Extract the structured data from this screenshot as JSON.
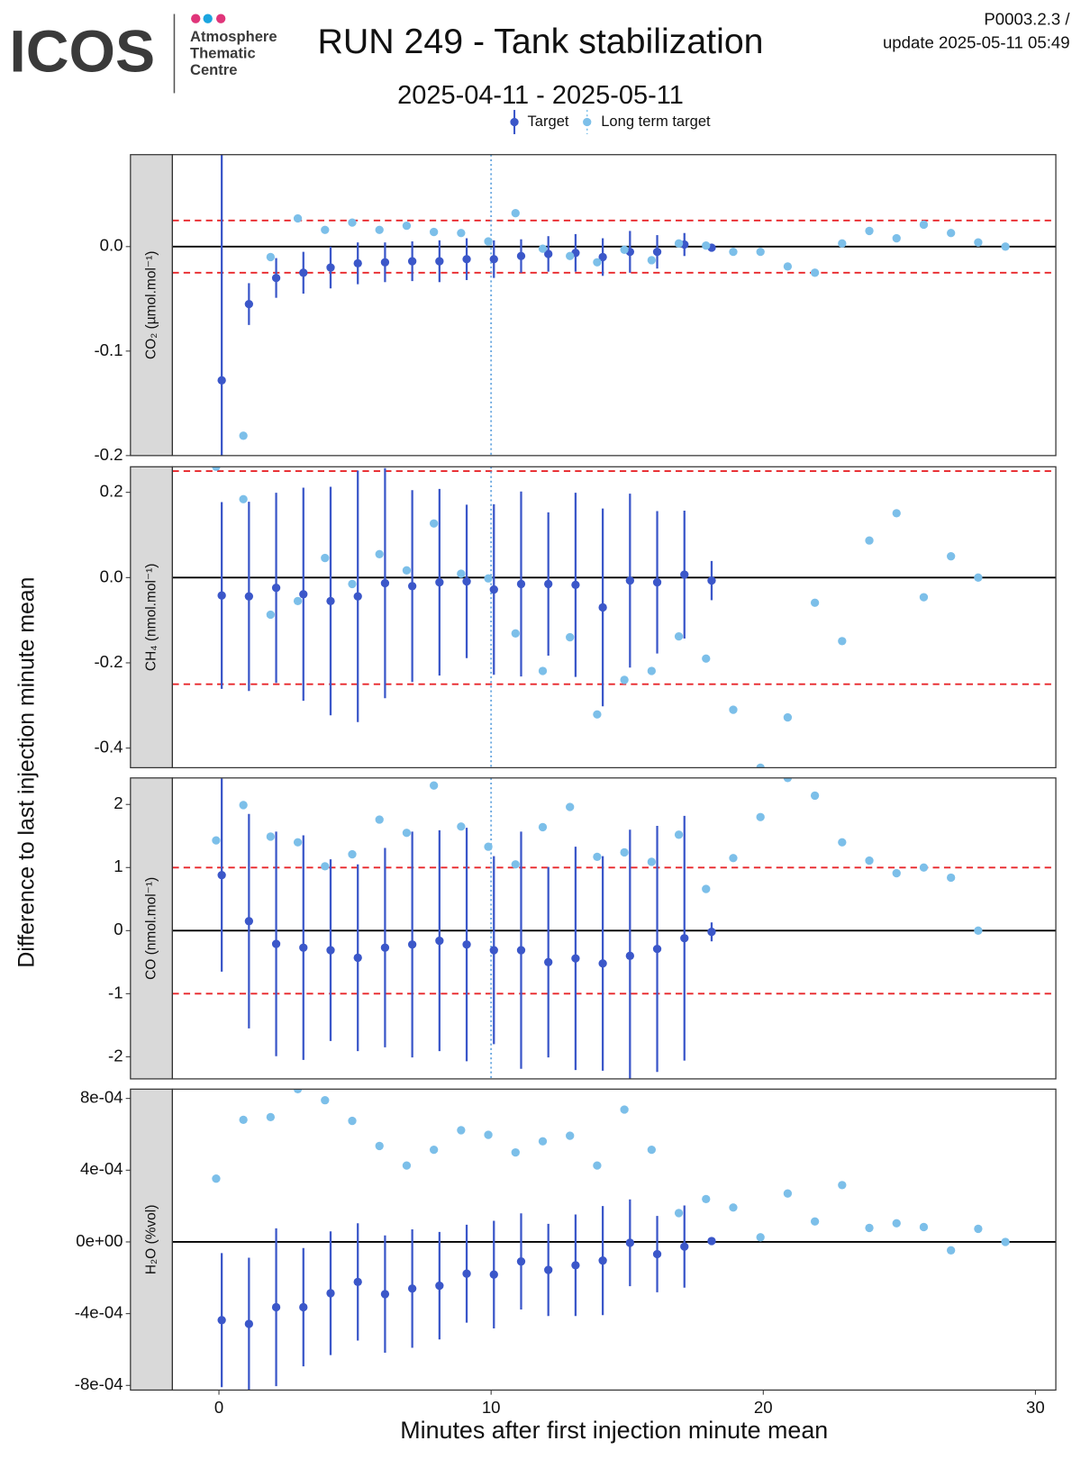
{
  "header": {
    "logo": "ICOS",
    "org": [
      "Atmosphere",
      "Thematic",
      "Centre"
    ],
    "title": "RUN 249 - Tank stabilization",
    "subtitle": "2025-04-11 - 2025-05-11",
    "code": "P0003.2.3 /",
    "update": "update  2025-05-11 05:49",
    "ylabel": "Difference to last injection minute mean"
  },
  "chart_data": [
    {
      "type": "errorbar-scatter",
      "strip": "CO₂ (µmol.mol⁻¹)",
      "xlim": [
        -1.71,
        30.75
      ],
      "ylim": [
        -0.2,
        0.088
      ],
      "yticks": [
        {
          "value": 0,
          "label": "0.0"
        },
        -0.1,
        -0.2
      ],
      "hlines": [
        0.025,
        -0.025
      ],
      "vline": 10,
      "series": [
        {
          "name": "Target",
          "color": "#3b57c9",
          "x": [
            0,
            1,
            2,
            3,
            4,
            5,
            6,
            7,
            8,
            9,
            10,
            11,
            12,
            13,
            14,
            15,
            16,
            17,
            18
          ],
          "values": [
            -0.128,
            -0.055,
            -0.03,
            -0.025,
            -0.02,
            -0.016,
            -0.015,
            -0.014,
            -0.014,
            -0.012,
            -0.012,
            -0.009,
            -0.007,
            -0.006,
            -0.01,
            -0.005,
            -0.005,
            0.002,
            -0.001
          ],
          "errors": [
            0.23,
            0.02,
            0.019,
            0.02,
            0.02,
            0.02,
            0.019,
            0.019,
            0.02,
            0.02,
            0.018,
            0.016,
            0.017,
            0.018,
            0.018,
            0.02,
            0.016,
            0.011,
            0.002
          ]
        },
        {
          "name": "Long term target",
          "color": "#7cbfe9",
          "x": [
            1,
            2,
            3,
            4,
            5,
            6,
            7,
            8,
            9,
            10,
            11,
            12,
            13,
            14,
            15,
            16,
            17,
            18,
            19,
            20,
            21,
            22,
            23,
            24,
            25,
            26,
            27,
            28,
            29
          ],
          "values": [
            -0.181,
            -0.01,
            0.027,
            0.016,
            0.023,
            0.016,
            0.02,
            0.014,
            0.013,
            0.005,
            0.032,
            -0.002,
            -0.009,
            -0.015,
            -0.003,
            -0.013,
            0.003,
            0.001,
            -0.005,
            -0.005,
            -0.019,
            -0.025,
            0.003,
            0.015,
            0.008,
            0.021,
            0.013,
            0.004,
            0.0
          ]
        }
      ]
    },
    {
      "type": "errorbar-scatter",
      "strip": "CH₄ (nmol.mol⁻¹)",
      "xlim": [
        -1.71,
        30.75
      ],
      "ylim": [
        -0.446,
        0.26
      ],
      "yticks": [
        0.2,
        {
          "value": 0,
          "label": "0.0"
        },
        -0.2,
        -0.4
      ],
      "hlines": [
        0.25,
        -0.25
      ],
      "vline": 10,
      "series": [
        {
          "color": "#3b57c9",
          "x": [
            0,
            1,
            2,
            3,
            4,
            5,
            6,
            7,
            8,
            9,
            10,
            11,
            12,
            13,
            14,
            15,
            16,
            17,
            18
          ],
          "values": [
            -0.042,
            -0.044,
            -0.024,
            -0.039,
            -0.055,
            -0.044,
            -0.013,
            -0.02,
            -0.011,
            -0.009,
            -0.028,
            -0.015,
            -0.015,
            -0.017,
            -0.07,
            -0.007,
            -0.011,
            0.007,
            -0.007
          ],
          "errors": [
            0.219,
            0.222,
            0.223,
            0.25,
            0.268,
            0.295,
            0.27,
            0.225,
            0.219,
            0.18,
            0.2,
            0.217,
            0.168,
            0.216,
            0.232,
            0.204,
            0.167,
            0.15,
            0.046
          ]
        },
        {
          "color": "#7cbfe9",
          "x": [
            0,
            1,
            2,
            3,
            4,
            5,
            6,
            7,
            8,
            9,
            10,
            11,
            12,
            13,
            14,
            15,
            16,
            17,
            18,
            19,
            20,
            21,
            22,
            23,
            24,
            25,
            26,
            27,
            28
          ],
          "values": [
            0.26,
            0.184,
            -0.087,
            -0.055,
            0.046,
            -0.015,
            0.055,
            0.017,
            0.127,
            0.009,
            -0.002,
            -0.131,
            -0.219,
            -0.14,
            -0.321,
            -0.24,
            -0.219,
            -0.138,
            -0.19,
            -0.31,
            -0.446,
            -0.328,
            -0.059,
            -0.149,
            0.087,
            0.151,
            -0.046,
            0.05,
            0.0
          ]
        }
      ]
    },
    {
      "type": "errorbar-scatter",
      "strip": "CO (nmol.mol⁻¹)",
      "xlim": [
        -1.71,
        30.75
      ],
      "ylim": [
        -2.35,
        2.42
      ],
      "yticks": [
        2,
        1,
        0,
        -1,
        -2
      ],
      "hlines": [
        1,
        -1
      ],
      "vline": 10,
      "series": [
        {
          "color": "#3b57c9",
          "x": [
            0,
            1,
            2,
            3,
            4,
            5,
            6,
            7,
            8,
            9,
            10,
            11,
            12,
            13,
            14,
            15,
            16,
            17,
            18
          ],
          "values": [
            0.88,
            0.15,
            -0.21,
            -0.27,
            -0.31,
            -0.43,
            -0.27,
            -0.22,
            -0.16,
            -0.22,
            -0.31,
            -0.31,
            -0.5,
            -0.44,
            -0.52,
            -0.4,
            -0.29,
            -0.12,
            -0.02
          ],
          "errors": [
            1.53,
            1.7,
            1.78,
            1.78,
            1.44,
            1.48,
            1.58,
            1.79,
            1.75,
            1.85,
            1.49,
            1.88,
            1.51,
            1.77,
            1.7,
            2.0,
            1.95,
            1.94,
            0.15
          ]
        },
        {
          "color": "#7cbfe9",
          "x": [
            0,
            1,
            2,
            3,
            4,
            5,
            6,
            7,
            8,
            9,
            10,
            11,
            12,
            13,
            14,
            15,
            16,
            17,
            18,
            19,
            20,
            21,
            22,
            23,
            24,
            25,
            26,
            27,
            28
          ],
          "values": [
            1.43,
            1.99,
            1.49,
            1.4,
            1.02,
            1.21,
            1.76,
            1.55,
            2.3,
            1.65,
            1.33,
            1.05,
            1.64,
            1.96,
            1.17,
            1.24,
            1.09,
            1.52,
            0.66,
            1.15,
            1.8,
            2.42,
            2.14,
            1.4,
            1.11,
            0.91,
            1.0,
            0.84,
            0.0
          ]
        }
      ]
    },
    {
      "type": "errorbar-scatter",
      "strip": "H₂O (%vol)",
      "xlim": [
        -1.71,
        30.75
      ],
      "ylim": [
        -0.000826,
        0.000852
      ],
      "yticks": [
        {
          "value": 0.0008,
          "label": "8e-04"
        },
        {
          "value": 0.0004,
          "label": "4e-04"
        },
        {
          "value": 0,
          "label": "0e+00"
        },
        {
          "value": -0.0004,
          "label": "-4e-04"
        },
        {
          "value": -0.0008,
          "label": "-8e-04"
        }
      ],
      "xticks": [
        0,
        10,
        20,
        30
      ],
      "xlabel": "Minutes after first injection minute mean",
      "series": [
        {
          "color": "#3b57c9",
          "x": [
            0,
            1,
            2,
            3,
            4,
            5,
            6,
            7,
            8,
            9,
            10,
            11,
            12,
            13,
            14,
            15,
            16,
            17,
            18
          ],
          "values": [
            -0.000436,
            -0.000457,
            -0.000364,
            -0.000364,
            -0.000286,
            -0.000223,
            -0.000291,
            -0.00026,
            -0.000244,
            -0.000177,
            -0.000182,
            -0.000109,
            -0.000156,
            -0.00013,
            -0.000104,
            -5e-06,
            -6.8e-05,
            -2.6e-05,
            5e-06
          ],
          "errors": [
            0.000374,
            0.000369,
            0.00044,
            0.00033,
            0.000345,
            0.000327,
            0.000327,
            0.00033,
            0.0003,
            0.000273,
            0.0003,
            0.000268,
            0.000257,
            0.000283,
            0.000304,
            0.000242,
            0.000213,
            0.000229,
            0
          ]
        },
        {
          "color": "#7cbfe9",
          "x": [
            0,
            1,
            2,
            3,
            4,
            5,
            6,
            7,
            8,
            9,
            10,
            11,
            12,
            13,
            14,
            15,
            16,
            17,
            18,
            19,
            20,
            21,
            22,
            23,
            24,
            25,
            26,
            27,
            28,
            29
          ],
          "values": [
            0.000353,
            0.000681,
            0.000696,
            0.000852,
            0.00079,
            0.000675,
            0.000535,
            0.000426,
            0.000514,
            0.000623,
            0.000597,
            0.000499,
            0.000561,
            0.000592,
            0.000426,
            0.000738,
            0.000514,
            0.000161,
            0.000239,
            0.000192,
            2.6e-05,
            0.00027,
            0.000114,
            0.000317,
            7.8e-05,
            0.000104,
            8.3e-05,
            -4.7e-05,
            7.3e-05,
            0
          ]
        }
      ]
    }
  ]
}
